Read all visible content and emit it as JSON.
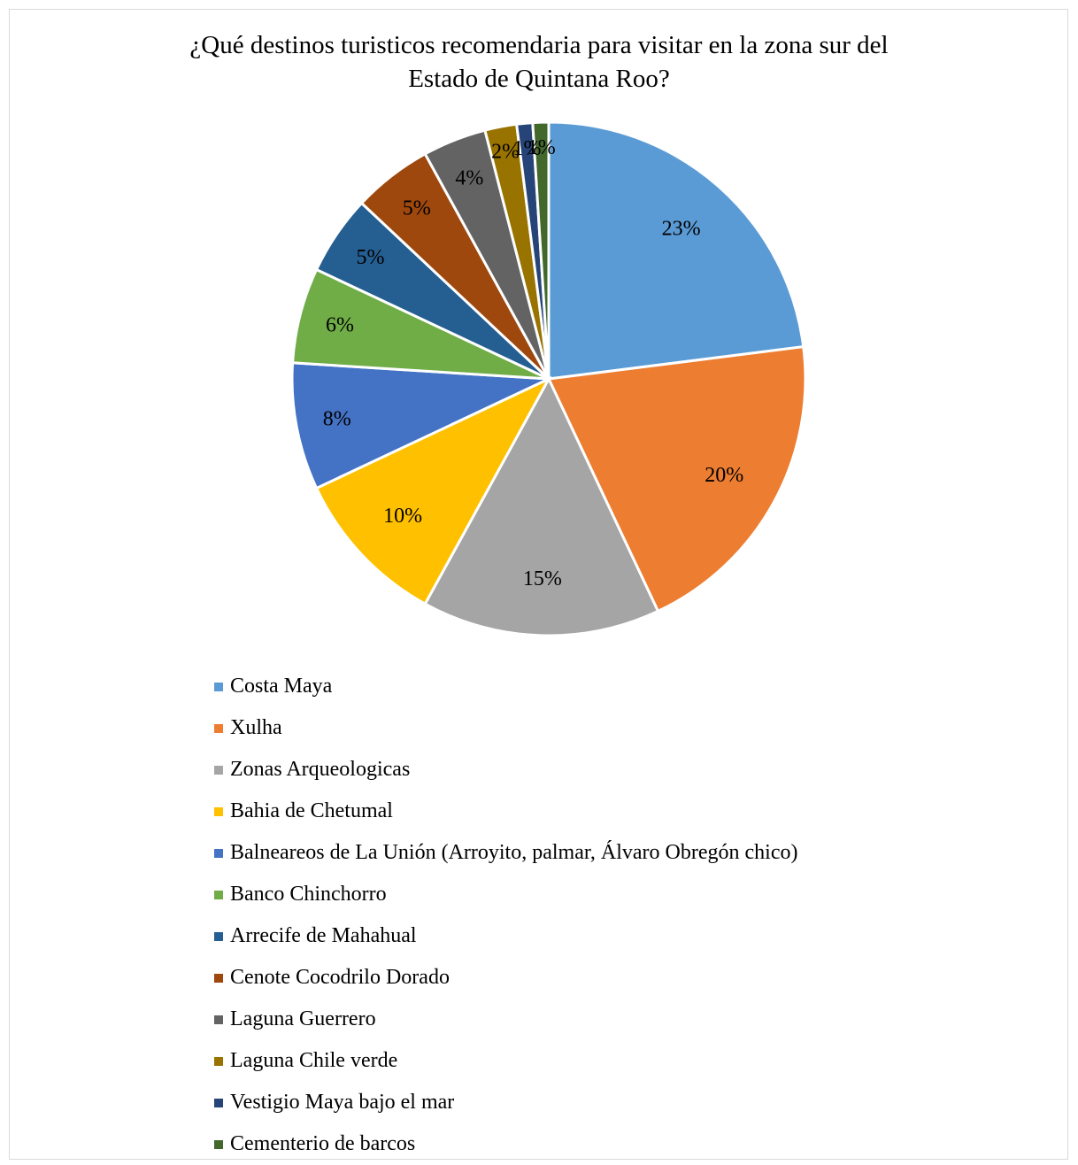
{
  "chart_data": {
    "type": "pie",
    "title": [
      "¿Qué destinos turisticos recomendaria para visitar en la zona sur del",
      "Estado de Quintana Roo?"
    ],
    "categories": [
      "Costa Maya",
      "Xulha",
      "Zonas Arqueologicas",
      "Bahia de Chetumal",
      "Balneareos de La Unión (Arroyito, palmar, Álvaro Obregón chico)",
      "Banco Chinchorro",
      "Arrecife de Mahahual",
      "Cenote Cocodrilo Dorado",
      "Laguna Guerrero",
      "Laguna Chile verde",
      "Vestigio Maya bajo el mar",
      "Cementerio de barcos"
    ],
    "values": [
      23,
      20,
      15,
      10,
      8,
      6,
      5,
      5,
      4,
      2,
      1,
      1
    ],
    "data_labels": [
      "23%",
      "20%",
      "15%",
      "10%",
      "8%",
      "6%",
      "5%",
      "5%",
      "4%",
      "2%",
      "1%",
      "1%"
    ],
    "colors": [
      "#5b9bd5",
      "#ed7d31",
      "#a5a5a5",
      "#ffc000",
      "#4472c4",
      "#70ad47",
      "#255e91",
      "#9e480e",
      "#636363",
      "#997300",
      "#264478",
      "#43682b"
    ],
    "legend_position": "bottom"
  }
}
